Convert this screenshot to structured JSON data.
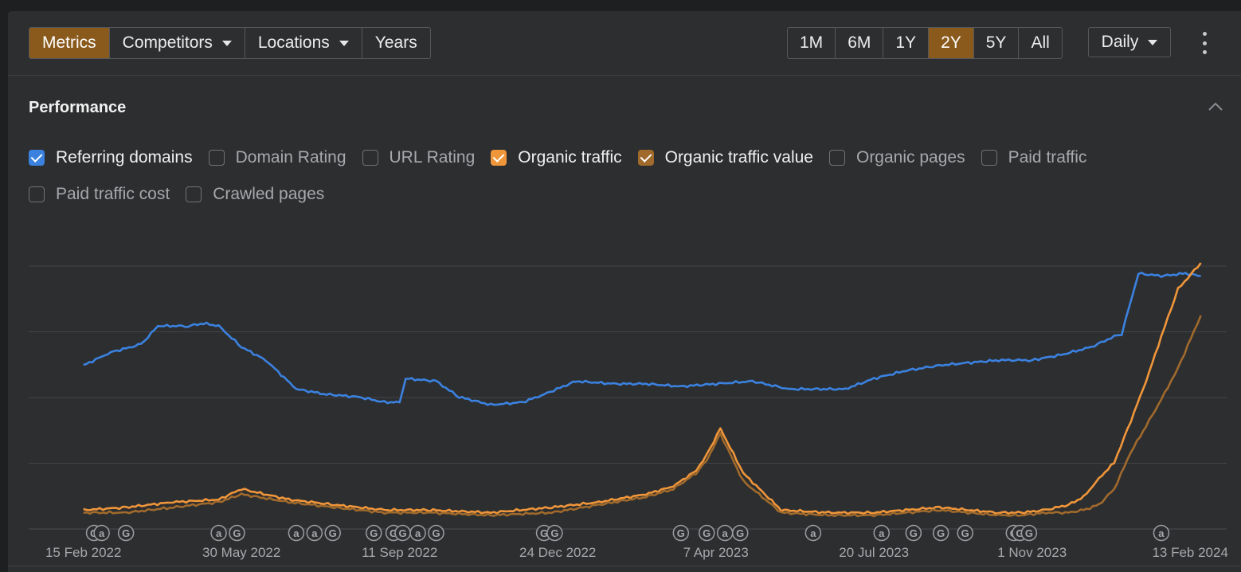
{
  "toolbar": {
    "left_tabs": [
      {
        "label": "Metrics",
        "active": true,
        "dropdown": false
      },
      {
        "label": "Competitors",
        "active": false,
        "dropdown": true
      },
      {
        "label": "Locations",
        "active": false,
        "dropdown": true
      },
      {
        "label": "Years",
        "active": false,
        "dropdown": false
      }
    ],
    "ranges": [
      {
        "label": "1M",
        "active": false
      },
      {
        "label": "6M",
        "active": false
      },
      {
        "label": "1Y",
        "active": false
      },
      {
        "label": "2Y",
        "active": true
      },
      {
        "label": "5Y",
        "active": false
      },
      {
        "label": "All",
        "active": false
      }
    ],
    "granularity": "Daily",
    "more_icon": "kebab-menu-icon"
  },
  "section": {
    "title": "Performance",
    "collapse_icon": "chevron-up-icon"
  },
  "metrics": [
    {
      "label": "Referring domains",
      "checked": true,
      "color": "#3b82e0"
    },
    {
      "label": "Domain Rating",
      "checked": false
    },
    {
      "label": "URL Rating",
      "checked": false
    },
    {
      "label": "Organic traffic",
      "checked": true,
      "color": "#f0963a"
    },
    {
      "label": "Organic traffic value",
      "checked": true,
      "color": "#a06a2c"
    },
    {
      "label": "Organic pages",
      "checked": false
    },
    {
      "label": "Paid traffic",
      "checked": false
    },
    {
      "label": "Paid traffic cost",
      "checked": false
    },
    {
      "label": "Crawled pages",
      "checked": false
    }
  ],
  "chart_data": {
    "type": "line",
    "x_tick_labels": [
      "15 Feb 2022",
      "30 May 2022",
      "11 Sep 2022",
      "24 Dec 2022",
      "7 Apr 2023",
      "20 Jul 2023",
      "1 Nov 2023",
      "13 Feb 2024"
    ],
    "grid": true,
    "y_axis_labels_visible": false,
    "y_range_relative": [
      0,
      100
    ],
    "series": [
      {
        "name": "Referring domains",
        "color": "#3b82e0",
        "x": [
          "2022-02-15",
          "2022-03-05",
          "2022-03-25",
          "2022-04-05",
          "2022-04-25",
          "2022-05-05",
          "2022-05-15",
          "2022-05-30",
          "2022-06-15",
          "2022-07-05",
          "2022-07-25",
          "2022-08-15",
          "2022-09-01",
          "2022-09-11",
          "2022-09-15",
          "2022-10-05",
          "2022-10-20",
          "2022-11-10",
          "2022-12-01",
          "2022-12-15",
          "2023-01-05",
          "2023-01-30",
          "2023-02-20",
          "2023-03-15",
          "2023-04-07",
          "2023-05-01",
          "2023-05-25",
          "2023-06-15",
          "2023-07-01",
          "2023-07-20",
          "2023-08-10",
          "2023-09-01",
          "2023-09-20",
          "2023-10-10",
          "2023-11-01",
          "2023-11-20",
          "2023-12-10",
          "2023-12-25",
          "2023-12-30",
          "2024-01-10",
          "2024-01-25",
          "2024-02-10",
          "2024-02-20"
        ],
        "y": [
          61,
          66,
          69,
          76,
          76,
          77,
          76,
          68,
          63,
          52,
          50,
          49,
          47,
          47,
          56,
          55,
          49,
          46,
          47,
          50,
          55,
          54,
          54,
          53,
          54,
          55,
          52,
          52,
          52,
          56,
          59,
          61,
          62,
          63,
          63,
          65,
          68,
          72,
          73,
          96,
          95,
          96,
          95
        ]
      },
      {
        "name": "Organic traffic",
        "color": "#f0963a",
        "x": [
          "2022-02-15",
          "2022-03-15",
          "2022-04-15",
          "2022-05-15",
          "2022-05-30",
          "2022-06-30",
          "2022-07-30",
          "2022-09-01",
          "2022-10-01",
          "2022-11-10",
          "2022-12-20",
          "2023-01-20",
          "2023-02-20",
          "2023-03-10",
          "2023-03-25",
          "2023-04-01",
          "2023-04-10",
          "2023-04-25",
          "2023-05-20",
          "2023-06-20",
          "2023-07-20",
          "2023-08-10",
          "2023-09-01",
          "2023-09-20",
          "2023-10-10",
          "2023-10-25",
          "2023-11-10",
          "2023-11-25",
          "2023-12-05",
          "2023-12-15",
          "2023-12-25",
          "2024-01-05",
          "2024-01-15",
          "2024-01-25",
          "2024-02-05",
          "2024-02-20"
        ],
        "y": [
          6,
          7,
          9,
          10,
          14,
          10,
          8,
          6,
          6,
          5,
          7,
          9,
          12,
          15,
          21,
          27,
          37,
          20,
          6,
          5,
          5,
          6,
          7,
          6,
          5,
          5,
          6,
          8,
          11,
          18,
          24,
          40,
          55,
          72,
          90,
          100
        ]
      },
      {
        "name": "Organic traffic value",
        "color": "#a06a2c",
        "x": [
          "2022-02-15",
          "2022-03-15",
          "2022-04-15",
          "2022-05-15",
          "2022-05-30",
          "2022-06-30",
          "2022-07-30",
          "2022-09-01",
          "2022-10-01",
          "2022-11-10",
          "2022-12-20",
          "2023-01-20",
          "2023-02-20",
          "2023-03-10",
          "2023-03-25",
          "2023-04-01",
          "2023-04-10",
          "2023-04-25",
          "2023-05-20",
          "2023-06-20",
          "2023-07-20",
          "2023-08-10",
          "2023-09-01",
          "2023-09-20",
          "2023-10-10",
          "2023-10-25",
          "2023-11-10",
          "2023-11-25",
          "2023-12-05",
          "2023-12-15",
          "2023-12-25",
          "2024-01-05",
          "2024-01-15",
          "2024-01-25",
          "2024-02-05",
          "2024-02-20"
        ],
        "y": [
          5,
          5,
          7,
          9,
          12,
          9,
          7,
          5,
          5,
          4,
          5,
          8,
          11,
          14,
          20,
          25,
          35,
          17,
          5,
          4,
          4,
          5,
          6,
          5,
          4,
          4,
          5,
          5,
          6,
          8,
          14,
          28,
          38,
          48,
          60,
          80
        ]
      }
    ],
    "annotations": [
      {
        "date": "2022-02-22",
        "label": "G"
      },
      {
        "date": "2022-02-27",
        "label": "a"
      },
      {
        "date": "2022-03-15",
        "label": "G"
      },
      {
        "date": "2022-05-15",
        "label": "a"
      },
      {
        "date": "2022-05-27",
        "label": "G"
      },
      {
        "date": "2022-07-05",
        "label": "a"
      },
      {
        "date": "2022-07-17",
        "label": "a"
      },
      {
        "date": "2022-07-29",
        "label": "G"
      },
      {
        "date": "2022-08-25",
        "label": "G"
      },
      {
        "date": "2022-09-07",
        "label": "G"
      },
      {
        "date": "2022-09-13",
        "label": "G"
      },
      {
        "date": "2022-09-23",
        "label": "a"
      },
      {
        "date": "2022-10-05",
        "label": "G"
      },
      {
        "date": "2022-12-15",
        "label": "G"
      },
      {
        "date": "2022-12-22",
        "label": "G"
      },
      {
        "date": "2023-03-15",
        "label": "G"
      },
      {
        "date": "2023-04-01",
        "label": "G"
      },
      {
        "date": "2023-04-13",
        "label": "a"
      },
      {
        "date": "2023-04-23",
        "label": "G"
      },
      {
        "date": "2023-06-10",
        "label": "a"
      },
      {
        "date": "2023-07-25",
        "label": "a"
      },
      {
        "date": "2023-08-15",
        "label": "G"
      },
      {
        "date": "2023-09-02",
        "label": "G"
      },
      {
        "date": "2023-09-18",
        "label": "G"
      },
      {
        "date": "2023-10-20",
        "label": "G"
      },
      {
        "date": "2023-10-24",
        "label": "G"
      },
      {
        "date": "2023-10-30",
        "label": "G"
      },
      {
        "date": "2024-01-25",
        "label": "a"
      }
    ]
  }
}
